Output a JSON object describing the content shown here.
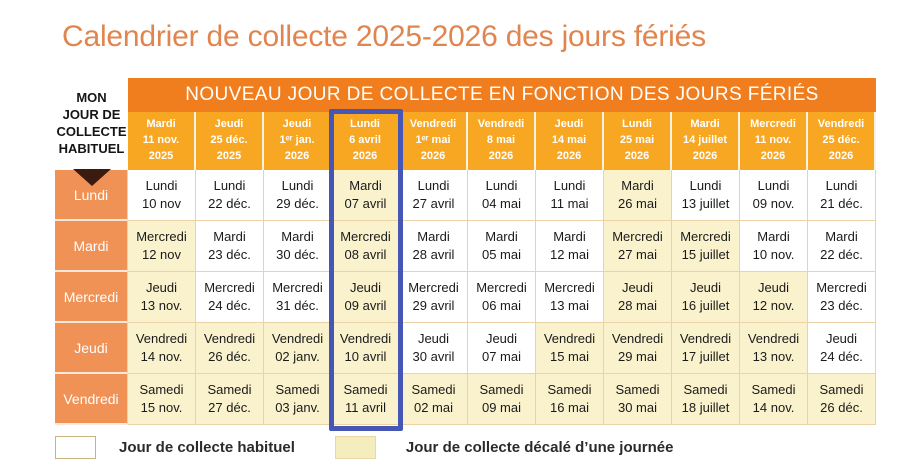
{
  "title": "Calendrier de collecte 2025-2026 des jours fériés",
  "calendar": {
    "corner_label_lines": [
      "MON",
      "JOUR DE",
      "COLLECTE",
      "HABITUEL"
    ],
    "banner": "NOUVEAU JOUR DE COLLECTE EN FONCTION DES JOURS FÉRIÉS",
    "highlighted_column_index": 3,
    "holiday_columns": [
      {
        "day": "Mardi",
        "date": "11 nov.",
        "year": "2025"
      },
      {
        "day": "Jeudi",
        "date": "25 déc.",
        "year": "2025"
      },
      {
        "day": "Jeudi",
        "date": "1ᵉʳ jan.",
        "year": "2026"
      },
      {
        "day": "Lundi",
        "date": "6 avril",
        "year": "2026"
      },
      {
        "day": "Vendredi",
        "date": "1ᵉʳ mai",
        "year": "2026"
      },
      {
        "day": "Vendredi",
        "date": "8 mai",
        "year": "2026"
      },
      {
        "day": "Jeudi",
        "date": "14 mai",
        "year": "2026"
      },
      {
        "day": "Lundi",
        "date": "25 mai",
        "year": "2026"
      },
      {
        "day": "Mardi",
        "date": "14 juillet",
        "year": "2026"
      },
      {
        "day": "Mercredi",
        "date": "11 nov.",
        "year": "2026"
      },
      {
        "day": "Vendredi",
        "date": "25 déc.",
        "year": "2026"
      }
    ],
    "rows": [
      {
        "label": "Lundi",
        "cells": [
          {
            "day": "Lundi",
            "date": "10 nov",
            "shifted": false
          },
          {
            "day": "Lundi",
            "date": "22 déc.",
            "shifted": false
          },
          {
            "day": "Lundi",
            "date": "29 déc.",
            "shifted": false
          },
          {
            "day": "Mardi",
            "date": "07 avril",
            "shifted": true
          },
          {
            "day": "Lundi",
            "date": "27 avril",
            "shifted": false
          },
          {
            "day": "Lundi",
            "date": "04 mai",
            "shifted": false
          },
          {
            "day": "Lundi",
            "date": "11 mai",
            "shifted": false
          },
          {
            "day": "Mardi",
            "date": "26 mai",
            "shifted": true
          },
          {
            "day": "Lundi",
            "date": "13 juillet",
            "shifted": false
          },
          {
            "day": "Lundi",
            "date": "09 nov.",
            "shifted": false
          },
          {
            "day": "Lundi",
            "date": "21 déc.",
            "shifted": false
          }
        ]
      },
      {
        "label": "Mardi",
        "cells": [
          {
            "day": "Mercredi",
            "date": "12 nov",
            "shifted": true
          },
          {
            "day": "Mardi",
            "date": "23 déc.",
            "shifted": false
          },
          {
            "day": "Mardi",
            "date": "30 déc.",
            "shifted": false
          },
          {
            "day": "Mercredi",
            "date": "08 avril",
            "shifted": true
          },
          {
            "day": "Mardi",
            "date": "28 avril",
            "shifted": false
          },
          {
            "day": "Mardi",
            "date": "05 mai",
            "shifted": false
          },
          {
            "day": "Mardi",
            "date": "12 mai",
            "shifted": false
          },
          {
            "day": "Mercredi",
            "date": "27 mai",
            "shifted": true
          },
          {
            "day": "Mercredi",
            "date": "15 juillet",
            "shifted": true
          },
          {
            "day": "Mardi",
            "date": "10 nov.",
            "shifted": false
          },
          {
            "day": "Mardi",
            "date": "22 déc.",
            "shifted": false
          }
        ]
      },
      {
        "label": "Mercredi",
        "cells": [
          {
            "day": "Jeudi",
            "date": "13 nov.",
            "shifted": true
          },
          {
            "day": "Mercredi",
            "date": "24 déc.",
            "shifted": false
          },
          {
            "day": "Mercredi",
            "date": "31 déc.",
            "shifted": false
          },
          {
            "day": "Jeudi",
            "date": "09 avril",
            "shifted": true
          },
          {
            "day": "Mercredi",
            "date": "29 avril",
            "shifted": false
          },
          {
            "day": "Mercredi",
            "date": "06 mai",
            "shifted": false
          },
          {
            "day": "Mercredi",
            "date": "13 mai",
            "shifted": false
          },
          {
            "day": "Jeudi",
            "date": "28 mai",
            "shifted": true
          },
          {
            "day": "Jeudi",
            "date": "16 juillet",
            "shifted": true
          },
          {
            "day": "Jeudi",
            "date": "12 nov.",
            "shifted": true
          },
          {
            "day": "Mercredi",
            "date": "23 déc.",
            "shifted": false
          }
        ]
      },
      {
        "label": "Jeudi",
        "cells": [
          {
            "day": "Vendredi",
            "date": "14 nov.",
            "shifted": true
          },
          {
            "day": "Vendredi",
            "date": "26 déc.",
            "shifted": true
          },
          {
            "day": "Vendredi",
            "date": "02 janv.",
            "shifted": true
          },
          {
            "day": "Vendredi",
            "date": "10 avril",
            "shifted": true
          },
          {
            "day": "Jeudi",
            "date": "30 avril",
            "shifted": false
          },
          {
            "day": "Jeudi",
            "date": "07 mai",
            "shifted": false
          },
          {
            "day": "Vendredi",
            "date": "15 mai",
            "shifted": true
          },
          {
            "day": "Vendredi",
            "date": "29 mai",
            "shifted": true
          },
          {
            "day": "Vendredi",
            "date": "17 juillet",
            "shifted": true
          },
          {
            "day": "Vendredi",
            "date": "13 nov.",
            "shifted": true
          },
          {
            "day": "Jeudi",
            "date": "24 déc.",
            "shifted": false
          }
        ]
      },
      {
        "label": "Vendredi",
        "cells": [
          {
            "day": "Samedi",
            "date": "15 nov.",
            "shifted": true
          },
          {
            "day": "Samedi",
            "date": "27 déc.",
            "shifted": true
          },
          {
            "day": "Samedi",
            "date": "03 janv.",
            "shifted": true
          },
          {
            "day": "Samedi",
            "date": "11 avril",
            "shifted": true
          },
          {
            "day": "Samedi",
            "date": "02 mai",
            "shifted": true
          },
          {
            "day": "Samedi",
            "date": "09 mai",
            "shifted": true
          },
          {
            "day": "Samedi",
            "date": "16 mai",
            "shifted": true
          },
          {
            "day": "Samedi",
            "date": "30 mai",
            "shifted": true
          },
          {
            "day": "Samedi",
            "date": "18 juillet",
            "shifted": true
          },
          {
            "day": "Samedi",
            "date": "14 nov.",
            "shifted": true
          },
          {
            "day": "Samedi",
            "date": "26 déc.",
            "shifted": true
          }
        ]
      }
    ]
  },
  "legend": {
    "habitual": "Jour de collecte habituel",
    "shifted": "Jour de collecte décalé d’une journée"
  },
  "colors": {
    "title_text": "#E0854F",
    "banner_bg": "#F07E1E",
    "column_header_bg": "#F7A722",
    "row_header_bg": "#F09156",
    "shifted_cell_bg": "#FAF2CD",
    "normal_cell_bg": "#FFFFFF",
    "cell_border": "#EDD2A8",
    "highlight_outline": "#4656B4",
    "arrow": "#3B1B10"
  }
}
